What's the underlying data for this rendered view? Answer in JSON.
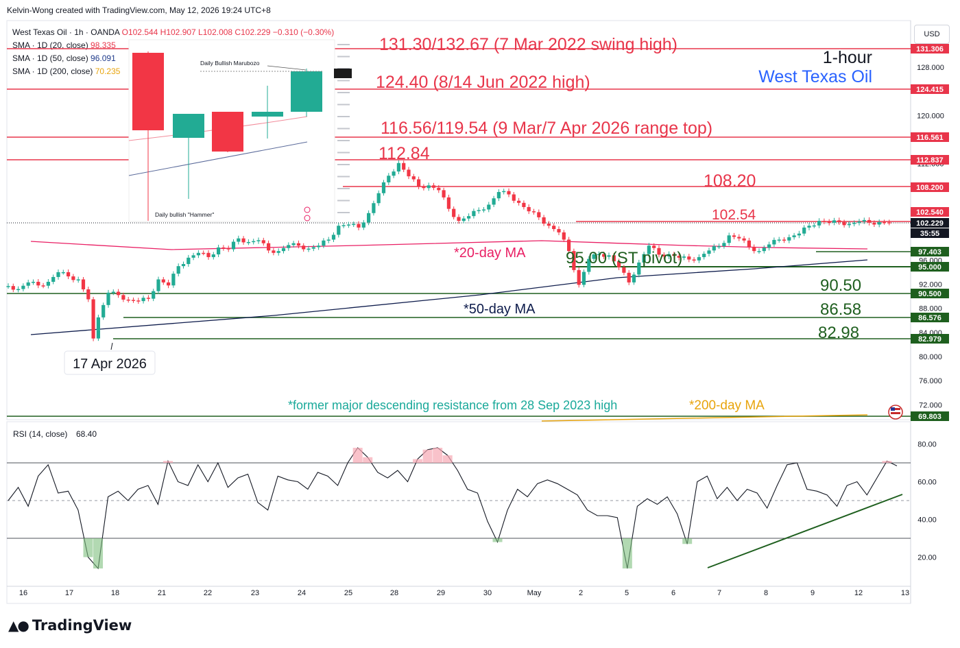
{
  "header": "Kelvin-Wong created with TradingView.com, May 12, 2026 19:24 UTC+8",
  "legend": {
    "symbol": "West Texas Oil · 1h · OANDA",
    "ohlc": "O102.544 H102.907 L102.008 C102.229 −0.310 (−0.30%)",
    "sma20_label": "SMA · 1D (20, close)",
    "sma20_value": "98.335",
    "sma50_label": "SMA · 1D (50, close)",
    "sma50_value": "96.091",
    "sma200_label": "SMA · 1D (200, close)",
    "sma200_value": "70.235"
  },
  "currency": "USD",
  "title_line1": "1-hour",
  "title_line2": "West Texas Oil",
  "inset": {
    "marubozo_label": "Daily Bullish Marubozo",
    "hammer_label": "Daily bullish \"Hammer\""
  },
  "annotations": {
    "level_131": "131.30/132.67 (7 Mar 2022 swing high)",
    "level_124": "124.40 (8/14 Jun 2022 high)",
    "level_116": "116.56/119.54 (9 Mar/7 Apr 2026 range top)",
    "level_112": "112.84",
    "level_108": "108.20",
    "level_102": "102.54",
    "pivot": "95.00 (ST pivot)",
    "level_90": "90.50",
    "level_86": "86.58",
    "level_82": "82.98",
    "ma20": "*20-day MA",
    "ma50": "*50-day MA",
    "ma200": "*200-day MA",
    "former_resistance": "*former major descending resistance from 28 Sep 2023 high",
    "date_callout": "17 Apr 2026"
  },
  "price_axis": {
    "ticks": [
      "128.000",
      "120.000",
      "112.000",
      "104.000",
      "96.000",
      "92.000",
      "88.000",
      "84.000",
      "80.000",
      "76.000",
      "72.000"
    ],
    "badges": [
      {
        "label": "131.306",
        "color": "#e8354a"
      },
      {
        "label": "124.415",
        "color": "#e8354a"
      },
      {
        "label": "116.561",
        "color": "#e8354a"
      },
      {
        "label": "112.837",
        "color": "#e8354a"
      },
      {
        "label": "108.200",
        "color": "#e8354a"
      },
      {
        "label": "102.540",
        "color": "#e8354a"
      },
      {
        "label": "102.229",
        "color": "#131722"
      },
      {
        "label": "35:55",
        "color": "#131722"
      },
      {
        "label": "97.403",
        "color": "#1e5f1e"
      },
      {
        "label": "95.000",
        "color": "#1e5f1e"
      },
      {
        "label": "90.500",
        "color": "#1e5f1e"
      },
      {
        "label": "86.576",
        "color": "#1e5f1e"
      },
      {
        "label": "82.979",
        "color": "#1e5f1e"
      },
      {
        "label": "69.803",
        "color": "#1e5f1e"
      }
    ]
  },
  "rsi": {
    "label": "RSI (14, close)",
    "value": "68.40",
    "ticks": [
      "80.00",
      "60.00",
      "40.00",
      "20.00"
    ]
  },
  "time_axis": [
    "16",
    "17",
    "18",
    "21",
    "22",
    "23",
    "24",
    "25",
    "28",
    "29",
    "30",
    "May",
    "2",
    "5",
    "6",
    "7",
    "8",
    "9",
    "12",
    "13"
  ],
  "brand": "TradingView",
  "colors": {
    "up": "#22ab94",
    "down": "#f23645",
    "red_line": "#e8354a",
    "green_line": "#1e5f1e",
    "ma20": "#e91e63",
    "ma50": "#0d1b4b",
    "ma200": "#e8a40c",
    "annotation_green": "#1f5f1f",
    "annotation_blue": "#2962ff",
    "teal": "#1aa99a"
  },
  "chart_data": [
    {
      "type": "candlestick",
      "title": "West Texas Oil · 1h · OANDA",
      "x_range": [
        "16",
        "13"
      ],
      "ylim": [
        69,
        136
      ],
      "key_levels": [
        131.306,
        124.415,
        116.561,
        112.837,
        108.2,
        102.54,
        97.403,
        95.0,
        90.5,
        86.576,
        82.979,
        69.803
      ],
      "last_close": 102.229,
      "series": [
        {
          "name": "price",
          "x": [
            0,
            2,
            4,
            6,
            8,
            10,
            12,
            14,
            16,
            17,
            18,
            20,
            22,
            24,
            26,
            28,
            30,
            32,
            34,
            36,
            38,
            40,
            42,
            44,
            46,
            48,
            50,
            52,
            54,
            56,
            58,
            60,
            62,
            64,
            66,
            68,
            70,
            72,
            74,
            76,
            78,
            80,
            82,
            84,
            86,
            88,
            90,
            92,
            94,
            96,
            98,
            100,
            102,
            104,
            106,
            108,
            110,
            112,
            114,
            116,
            118,
            120,
            122,
            124,
            126,
            128,
            130,
            132,
            134,
            136,
            138,
            140,
            142,
            144,
            146,
            148,
            150,
            152,
            154,
            156,
            158,
            160,
            162,
            164,
            166,
            168,
            170,
            172,
            174,
            176
          ],
          "values": [
            91.7,
            91.2,
            92.3,
            91.8,
            92.4,
            94.0,
            93.3,
            92.8,
            89.5,
            83.0,
            86.5,
            90.6,
            90.2,
            89.4,
            89.2,
            89.6,
            92.8,
            91.8,
            95.0,
            96.4,
            97.2,
            96.5,
            98.1,
            97.8,
            99.6,
            99.0,
            99.3,
            97.6,
            97.5,
            98.5,
            98.4,
            97.9,
            98.4,
            99.4,
            101.7,
            101.9,
            101.4,
            103.8,
            107.1,
            110.0,
            112.1,
            109.9,
            108.2,
            108.4,
            107.6,
            104.5,
            102.5,
            103.3,
            104.3,
            105.2,
            107.3,
            106.9,
            105.5,
            104.1,
            103.1,
            101.7,
            100.6,
            97.5,
            91.9,
            96.2,
            97.0,
            96.8,
            94.8,
            92.3,
            95.6,
            98.4,
            96.9,
            97.0,
            96.4,
            96.1,
            96.5,
            97.6,
            98.3,
            100.1,
            99.6,
            98.2,
            97.5,
            98.6,
            99.4,
            99.8,
            100.4,
            101.7,
            102.5,
            102.2,
            102.3,
            102.0,
            102.4,
            102.2,
            102.3,
            102.229
          ]
        },
        {
          "name": "*20-day MA",
          "values": [
            99.0,
            98.0,
            98.3,
            98.3,
            98.3
          ]
        },
        {
          "name": "*50-day MA",
          "values": [
            84.0,
            88.0,
            92.5,
            95.5,
            96.1
          ]
        },
        {
          "name": "*200-day MA",
          "values": [
            69.9,
            70.235
          ]
        }
      ]
    },
    {
      "type": "line",
      "title": "RSI (14, close)",
      "ylim": [
        0,
        100
      ],
      "levels": [
        70,
        50,
        30
      ],
      "series": [
        {
          "name": "RSI",
          "values": [
            50,
            57,
            47,
            63,
            69,
            54,
            55,
            45,
            20,
            14,
            52,
            55,
            50,
            56,
            58,
            48,
            71,
            60,
            58,
            69,
            60,
            70,
            57,
            62,
            64,
            49,
            45,
            63,
            61,
            60,
            56,
            65,
            63,
            58,
            70,
            78,
            73,
            65,
            62,
            66,
            60,
            72,
            77,
            78,
            74,
            66,
            56,
            54,
            39,
            28,
            45,
            56,
            52,
            59,
            61,
            59,
            56,
            53,
            45,
            42,
            42,
            41,
            14,
            47,
            51,
            48,
            52,
            43,
            27,
            60,
            63,
            51,
            57,
            50,
            56,
            54,
            46,
            58,
            69,
            70,
            56,
            55,
            53,
            47,
            58,
            60,
            53,
            62,
            71,
            68.4
          ]
        }
      ]
    }
  ]
}
